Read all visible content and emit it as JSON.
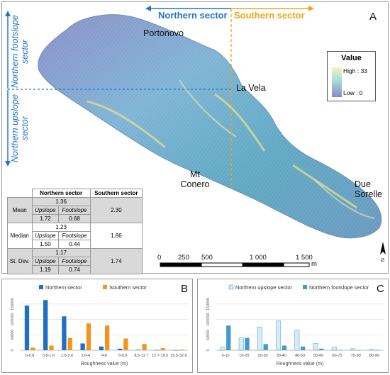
{
  "panel_a": {
    "letter": "A",
    "sector_north": "Northern sector",
    "sector_south": "Southern sector",
    "side_north_footslope": "Northern footslope sector",
    "side_north_upslope": "Northern upslope sector",
    "places": [
      "Portonovo",
      "La Vela",
      "Mt Conero",
      "Due Sorelle"
    ],
    "legend": {
      "title": "Value",
      "high": "High : 33",
      "low": "Low : 0"
    },
    "scalebar": {
      "ticks": [
        "0",
        "250",
        "500",
        "1 000",
        "1 500"
      ],
      "unit": "m"
    },
    "north_arrow": "N",
    "colors": {
      "north": "#2274c9",
      "south": "#f2a31a"
    },
    "table": {
      "col_north": "Northern sector",
      "col_south": "Southern sector",
      "rows": [
        {
          "label": "Mean",
          "north_total": "1.36",
          "upslope_label": "Upslope",
          "footslope_label": "Footslope",
          "upslope": "1.72",
          "footslope": "0.68",
          "south": "2.30"
        },
        {
          "label": "Median",
          "north_total": "1.23",
          "upslope_label": "Upslope",
          "footslope_label": "Footslope",
          "upslope": "1.50",
          "footslope": "0.44",
          "south": "1.86"
        },
        {
          "label": "St. Dev.",
          "north_total": "1.17",
          "upslope_label": "Upslope",
          "footslope_label": "Footslope",
          "upslope": "1.19",
          "footslope": "0.74",
          "south": "1.74"
        }
      ]
    }
  },
  "chart_data": [
    {
      "type": "bar",
      "panel": "B",
      "categories": [
        "0-0.8",
        "0.8-1.6",
        "1.6-2.6",
        "2.6-4",
        "4-6",
        "6-8.6",
        "8.6-12.7",
        "12.7-19.5",
        "19.5-32.8"
      ],
      "series": [
        {
          "name": "Northern sector",
          "color": "#1f6fc4",
          "values": [
            145000,
            163000,
            110000,
            22000,
            12000,
            5000,
            1500,
            500,
            200
          ]
        },
        {
          "name": "Southern sector",
          "color": "#f3941f",
          "values": [
            8000,
            15000,
            40000,
            87000,
            80000,
            38000,
            20000,
            7000,
            2000
          ]
        }
      ],
      "xlabel": "Roughness value (m)",
      "yticks": [
        "0",
        "50000",
        "100000",
        "150000"
      ],
      "ylim": [
        0,
        175000
      ],
      "legend": "top"
    },
    {
      "type": "bar",
      "panel": "C",
      "categories": [
        "0-10",
        "10-20",
        "20-30",
        "30-40",
        "40-50",
        "50-60",
        "60-70",
        "70-80",
        "80-90"
      ],
      "series": [
        {
          "name": "Northern upslope sector",
          "color": "#d6ecf6",
          "values": [
            10000,
            40000,
            75000,
            95000,
            65000,
            22000,
            10000,
            5000,
            2000
          ]
        },
        {
          "name": "Northern footslope sector",
          "color": "#3f9ccf",
          "values": [
            80000,
            40000,
            20000,
            15000,
            12000,
            5000,
            1000,
            500,
            200
          ]
        }
      ],
      "xlabel": "Roughness value (m)",
      "yticks": [
        "0",
        "50000",
        "100000",
        "150000"
      ],
      "ylim": [
        0,
        175000
      ],
      "legend": "top"
    }
  ]
}
